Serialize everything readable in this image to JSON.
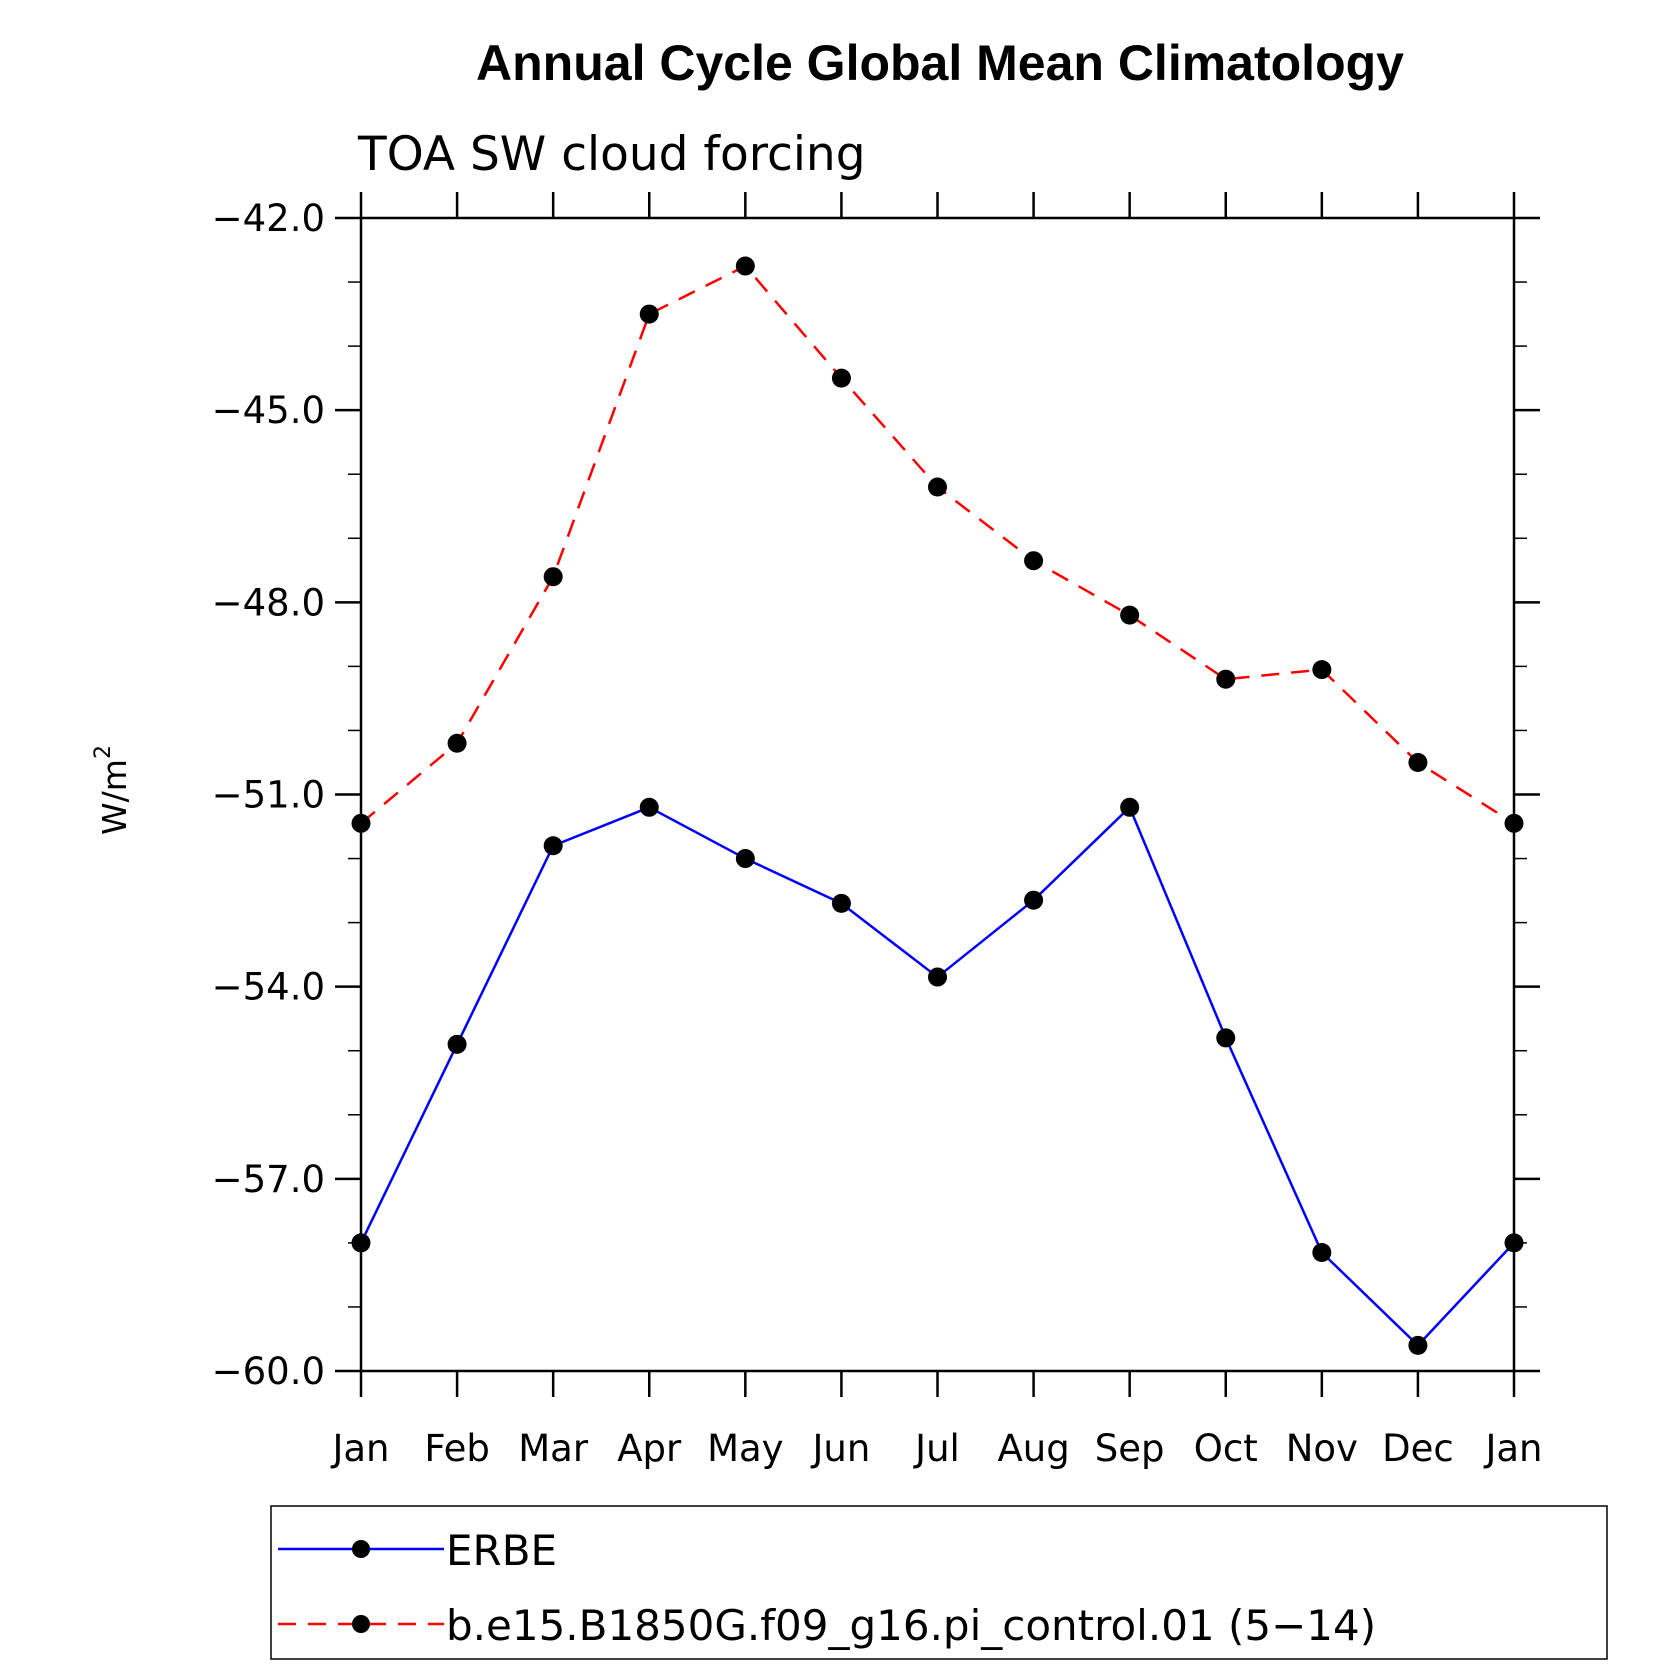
{
  "chart_data": {
    "type": "line",
    "title": "Annual Cycle Global Mean Climatology",
    "subtitle": "TOA SW cloud forcing",
    "ylabel_main": "W/m",
    "ylabel_sup": "2",
    "categories": [
      "Jan",
      "Feb",
      "Mar",
      "Apr",
      "May",
      "Jun",
      "Jul",
      "Aug",
      "Sep",
      "Oct",
      "Nov",
      "Dec",
      "Jan"
    ],
    "ylim": [
      -60.0,
      -42.0
    ],
    "yticks": [
      -42.0,
      -45.0,
      -48.0,
      -51.0,
      -54.0,
      -57.0,
      -60.0
    ],
    "ytick_labels": [
      "−42.0",
      "−45.0",
      "−48.0",
      "−51.0",
      "−54.0",
      "−57.0",
      "−60.0"
    ],
    "grid": false,
    "legend_position": "bottom",
    "series": [
      {
        "name": "ERBE",
        "color": "#0000ff",
        "style": "solid",
        "marker": "filled-circle",
        "values": [
          -58.0,
          -54.9,
          -51.8,
          -51.2,
          -52.0,
          -52.7,
          -53.85,
          -52.65,
          -51.2,
          -54.8,
          -58.15,
          -59.6,
          -58.0
        ]
      },
      {
        "name": "b.e15.B1850G.f09_g16.pi_control.01 (5−14)",
        "color": "#ff0000",
        "style": "dashed",
        "marker": "filled-circle",
        "values": [
          -51.45,
          -50.2,
          -47.6,
          -43.5,
          -42.75,
          -44.5,
          -46.2,
          -47.35,
          -48.2,
          -49.2,
          -49.05,
          -50.5,
          -51.45
        ]
      }
    ]
  }
}
